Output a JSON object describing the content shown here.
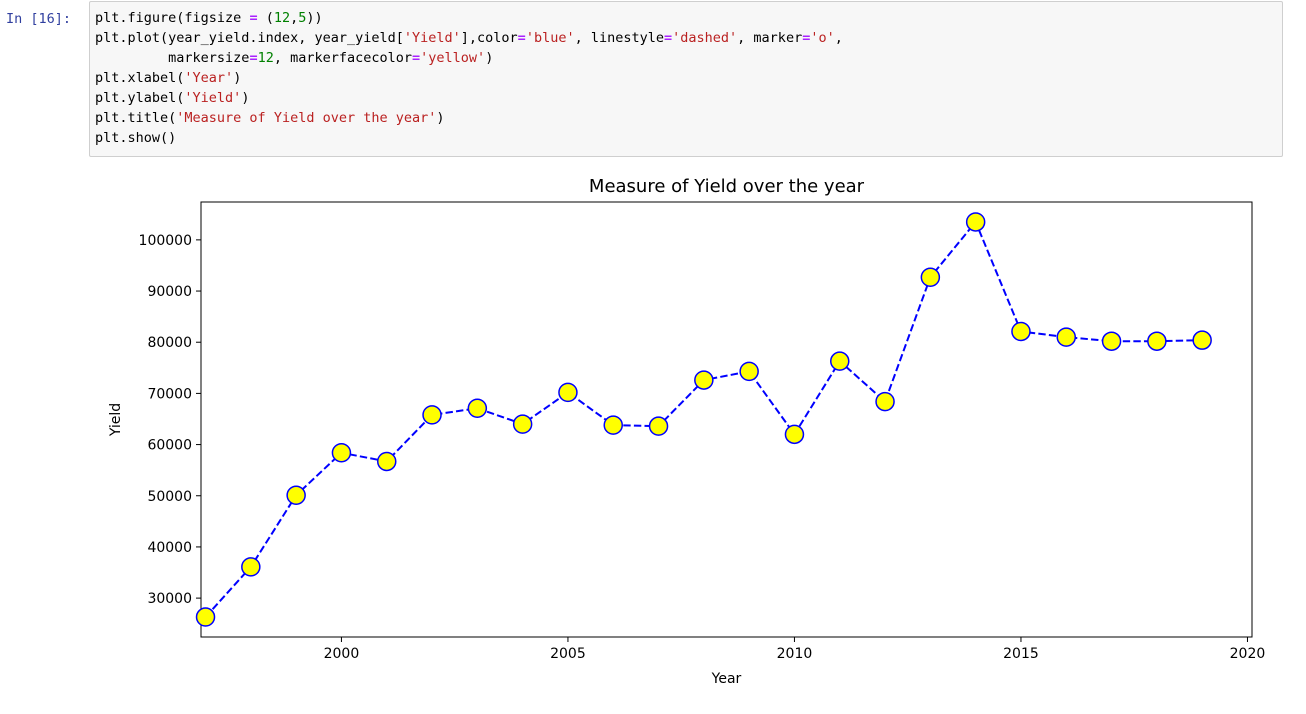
{
  "cell": {
    "prompt": "In [16]:",
    "code_lines": [
      [
        {
          "t": "plt.figure(figsize "
        },
        {
          "t": "=",
          "c": "op"
        },
        {
          "t": " ("
        },
        {
          "t": "12",
          "c": "num"
        },
        {
          "t": ","
        },
        {
          "t": "5",
          "c": "num"
        },
        {
          "t": "))"
        }
      ],
      [
        {
          "t": "plt.plot(year_yield.index, year_yield["
        },
        {
          "t": "'Yield'",
          "c": "str"
        },
        {
          "t": "],color"
        },
        {
          "t": "=",
          "c": "op"
        },
        {
          "t": "'blue'",
          "c": "str"
        },
        {
          "t": ", linestyle"
        },
        {
          "t": "=",
          "c": "op"
        },
        {
          "t": "'dashed'",
          "c": "str"
        },
        {
          "t": ", marker"
        },
        {
          "t": "=",
          "c": "op"
        },
        {
          "t": "'o'",
          "c": "str"
        },
        {
          "t": ","
        }
      ],
      [
        {
          "t": "         markersize"
        },
        {
          "t": "=",
          "c": "op"
        },
        {
          "t": "12",
          "c": "num"
        },
        {
          "t": ", markerfacecolor"
        },
        {
          "t": "=",
          "c": "op"
        },
        {
          "t": "'yellow'",
          "c": "str"
        },
        {
          "t": ")"
        }
      ],
      [
        {
          "t": "plt.xlabel("
        },
        {
          "t": "'Year'",
          "c": "str"
        },
        {
          "t": ")"
        }
      ],
      [
        {
          "t": "plt.ylabel("
        },
        {
          "t": "'Yield'",
          "c": "str"
        },
        {
          "t": ")"
        }
      ],
      [
        {
          "t": "plt.title("
        },
        {
          "t": "'Measure of Yield over the year'",
          "c": "str"
        },
        {
          "t": ")"
        }
      ],
      [
        {
          "t": "plt.show()"
        }
      ]
    ]
  },
  "chart_data": {
    "type": "line",
    "title": "Measure of Yield over the year",
    "xlabel": "Year",
    "ylabel": "Yield",
    "x": [
      1997,
      1998,
      1999,
      2000,
      2001,
      2002,
      2003,
      2004,
      2005,
      2006,
      2007,
      2008,
      2009,
      2010,
      2011,
      2012,
      2013,
      2014,
      2015,
      2016,
      2017,
      2018,
      2019
    ],
    "series": [
      {
        "values": [
          26300,
          36100,
          50100,
          58400,
          56700,
          65800,
          67100,
          64000,
          70200,
          63800,
          63600,
          72600,
          74300,
          62000,
          76300,
          68400,
          92700,
          103500,
          82100,
          81000,
          80200,
          80200,
          80400
        ],
        "color": "#0000ff",
        "linestyle": "dashed",
        "marker": "o",
        "marker_face": "#ffff00"
      }
    ],
    "xlim": [
      1996.9,
      2020.1
    ],
    "ylim": [
      22400,
      107400
    ],
    "xticks": [
      2000,
      2005,
      2010,
      2015,
      2020
    ],
    "yticks": [
      30000,
      40000,
      50000,
      60000,
      70000,
      80000,
      90000,
      100000
    ],
    "grid": false
  }
}
